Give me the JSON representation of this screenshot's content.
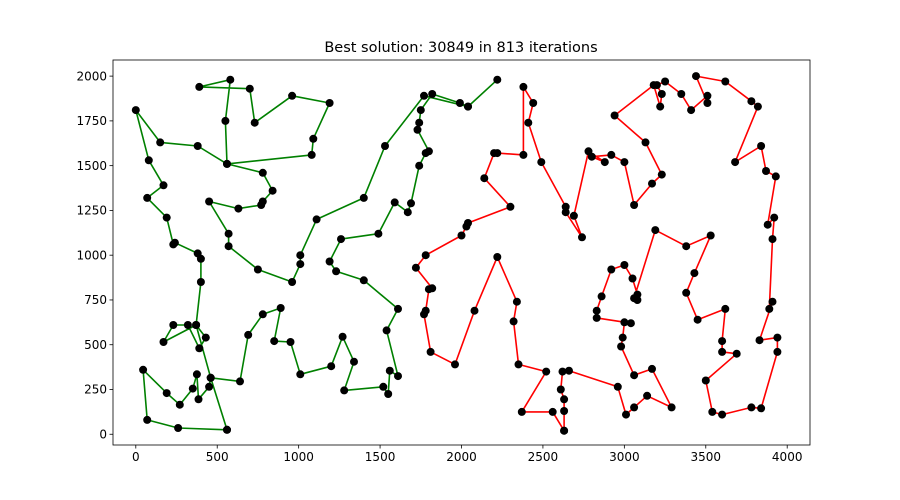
{
  "chart_data": {
    "type": "line",
    "title": "Best solution: 30849 in 813 iterations",
    "xlabel": "",
    "ylabel": "",
    "xlim": [
      -140,
      4140
    ],
    "ylim": [
      -60,
      2090
    ],
    "xticks": [
      0,
      500,
      1000,
      1500,
      2000,
      2500,
      3000,
      3500,
      4000
    ],
    "yticks": [
      0,
      250,
      500,
      750,
      1000,
      1250,
      1500,
      1750,
      2000
    ],
    "grid": false,
    "series": [
      {
        "color": "#008000",
        "points": [
          [
            560,
            25
          ],
          [
            260,
            35
          ],
          [
            70,
            80
          ],
          [
            45,
            360
          ],
          [
            190,
            230
          ],
          [
            270,
            165
          ],
          [
            350,
            255
          ],
          [
            375,
            335
          ],
          [
            385,
            195
          ],
          [
            450,
            265
          ],
          [
            460,
            315
          ],
          [
            640,
            295
          ],
          [
            690,
            555
          ],
          [
            780,
            670
          ],
          [
            890,
            705
          ],
          [
            850,
            520
          ],
          [
            950,
            515
          ],
          [
            1010,
            335
          ],
          [
            1200,
            380
          ],
          [
            1270,
            545
          ],
          [
            1340,
            405
          ],
          [
            1280,
            245
          ],
          [
            1520,
            265
          ],
          [
            1550,
            225
          ],
          [
            1560,
            355
          ],
          [
            1610,
            325
          ],
          [
            1540,
            580
          ],
          [
            1610,
            700
          ],
          [
            1400,
            860
          ],
          [
            1230,
            910
          ],
          [
            1190,
            965
          ],
          [
            1260,
            1090
          ],
          [
            1490,
            1120
          ],
          [
            1590,
            1295
          ],
          [
            1670,
            1240
          ],
          [
            1690,
            1290
          ],
          [
            1740,
            1500
          ],
          [
            1780,
            1570
          ],
          [
            1800,
            1580
          ],
          [
            1730,
            1700
          ],
          [
            1740,
            1740
          ],
          [
            1750,
            1810
          ],
          [
            1820,
            1900
          ],
          [
            1990,
            1850
          ],
          [
            2040,
            1830
          ],
          [
            2220,
            1980
          ],
          [
            2040,
            1830
          ],
          [
            1770,
            1890
          ],
          [
            1530,
            1610
          ],
          [
            1400,
            1320
          ],
          [
            1110,
            1200
          ],
          [
            1010,
            1000
          ],
          [
            1010,
            950
          ],
          [
            960,
            850
          ],
          [
            750,
            920
          ],
          [
            570,
            1050
          ],
          [
            570,
            1120
          ],
          [
            450,
            1300
          ],
          [
            630,
            1260
          ],
          [
            770,
            1280
          ],
          [
            780,
            1300
          ],
          [
            840,
            1360
          ],
          [
            780,
            1460
          ],
          [
            560,
            1510
          ],
          [
            550,
            1750
          ],
          [
            580,
            1980
          ],
          [
            390,
            1940
          ],
          [
            700,
            1930
          ],
          [
            730,
            1740
          ],
          [
            960,
            1890
          ],
          [
            1190,
            1850
          ],
          [
            1090,
            1650
          ],
          [
            1080,
            1560
          ],
          [
            560,
            1510
          ],
          [
            380,
            1610
          ],
          [
            150,
            1630
          ],
          [
            0,
            1810
          ],
          [
            80,
            1530
          ],
          [
            170,
            1390
          ],
          [
            70,
            1320
          ],
          [
            190,
            1210
          ],
          [
            230,
            1060
          ],
          [
            240,
            1070
          ],
          [
            380,
            1010
          ],
          [
            400,
            980
          ],
          [
            400,
            850
          ],
          [
            370,
            610
          ],
          [
            430,
            540
          ],
          [
            390,
            480
          ],
          [
            320,
            610
          ],
          [
            230,
            610
          ],
          [
            170,
            515
          ],
          [
            370,
            610
          ],
          [
            460,
            315
          ],
          [
            560,
            25
          ]
        ]
      },
      {
        "color": "#ff0000",
        "points": [
          [
            2630,
            20
          ],
          [
            2630,
            130
          ],
          [
            2630,
            195
          ],
          [
            2610,
            250
          ],
          [
            2620,
            350
          ],
          [
            2660,
            355
          ],
          [
            2960,
            265
          ],
          [
            3010,
            110
          ],
          [
            3060,
            150
          ],
          [
            3140,
            215
          ],
          [
            3290,
            150
          ],
          [
            3170,
            365
          ],
          [
            3060,
            330
          ],
          [
            2980,
            490
          ],
          [
            2990,
            540
          ],
          [
            3000,
            625
          ],
          [
            3040,
            620
          ],
          [
            2830,
            650
          ],
          [
            2830,
            690
          ],
          [
            2860,
            770
          ],
          [
            2920,
            920
          ],
          [
            3000,
            945
          ],
          [
            3050,
            870
          ],
          [
            3080,
            780
          ],
          [
            3080,
            750
          ],
          [
            3060,
            760
          ],
          [
            3190,
            1140
          ],
          [
            3380,
            1050
          ],
          [
            3530,
            1110
          ],
          [
            3430,
            900
          ],
          [
            3380,
            790
          ],
          [
            3450,
            640
          ],
          [
            3620,
            700
          ],
          [
            3600,
            520
          ],
          [
            3600,
            460
          ],
          [
            3690,
            450
          ],
          [
            3500,
            300
          ],
          [
            3540,
            125
          ],
          [
            3600,
            110
          ],
          [
            3780,
            150
          ],
          [
            3840,
            145
          ],
          [
            3940,
            460
          ],
          [
            3940,
            540
          ],
          [
            3830,
            525
          ],
          [
            3910,
            740
          ],
          [
            3890,
            700
          ],
          [
            3910,
            1090
          ],
          [
            3920,
            1210
          ],
          [
            3880,
            1170
          ],
          [
            3930,
            1440
          ],
          [
            3870,
            1470
          ],
          [
            3840,
            1610
          ],
          [
            3680,
            1520
          ],
          [
            3820,
            1830
          ],
          [
            3780,
            1860
          ],
          [
            3620,
            1970
          ],
          [
            3440,
            2000
          ],
          [
            3510,
            1850
          ],
          [
            3510,
            1890
          ],
          [
            3410,
            1810
          ],
          [
            3350,
            1900
          ],
          [
            3250,
            1970
          ],
          [
            3200,
            1950
          ],
          [
            3230,
            1900
          ],
          [
            3220,
            1830
          ],
          [
            3180,
            1950
          ],
          [
            2940,
            1780
          ],
          [
            3130,
            1630
          ],
          [
            3230,
            1450
          ],
          [
            3170,
            1400
          ],
          [
            3060,
            1280
          ],
          [
            3000,
            1520
          ],
          [
            2920,
            1560
          ],
          [
            2800,
            1550
          ],
          [
            2880,
            1520
          ],
          [
            2780,
            1580
          ],
          [
            2690,
            1220
          ],
          [
            2740,
            1100
          ],
          [
            2640,
            1240
          ],
          [
            2640,
            1270
          ],
          [
            2490,
            1520
          ],
          [
            2410,
            1740
          ],
          [
            2440,
            1850
          ],
          [
            2380,
            1940
          ],
          [
            2380,
            1560
          ],
          [
            2220,
            1570
          ],
          [
            2200,
            1570
          ],
          [
            2140,
            1430
          ],
          [
            2300,
            1270
          ],
          [
            2040,
            1180
          ],
          [
            2030,
            1160
          ],
          [
            2000,
            1110
          ],
          [
            1780,
            1000
          ],
          [
            1720,
            930
          ],
          [
            1820,
            815
          ],
          [
            1800,
            810
          ],
          [
            1780,
            690
          ],
          [
            1770,
            670
          ],
          [
            1810,
            460
          ],
          [
            1960,
            390
          ],
          [
            2080,
            690
          ],
          [
            2220,
            990
          ],
          [
            2340,
            740
          ],
          [
            2320,
            630
          ],
          [
            2350,
            390
          ],
          [
            2520,
            350
          ],
          [
            2370,
            125
          ],
          [
            2560,
            125
          ],
          [
            2630,
            20
          ]
        ]
      }
    ]
  }
}
